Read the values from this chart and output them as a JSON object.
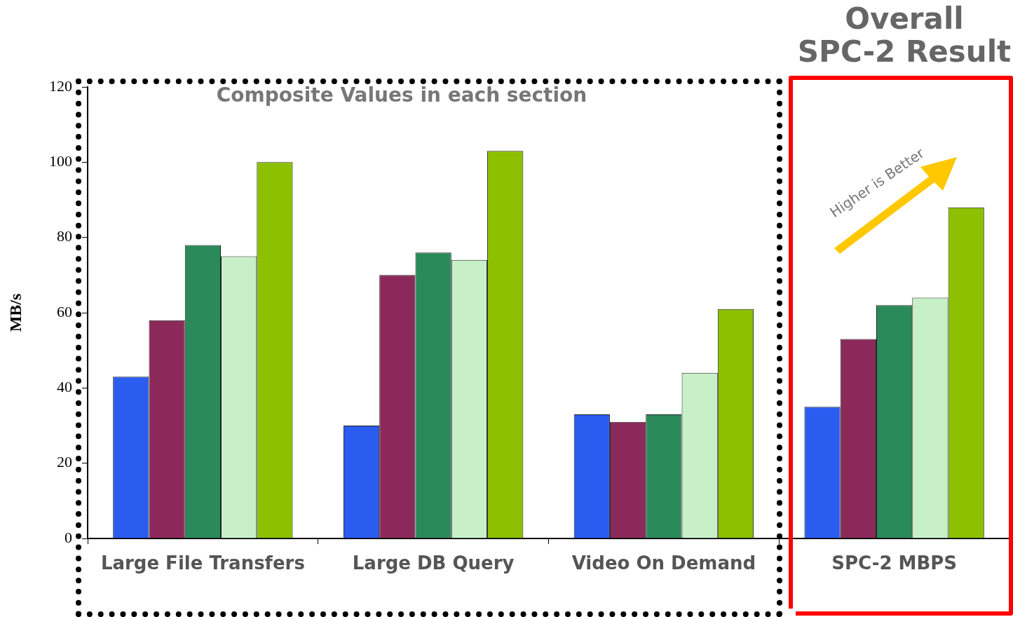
{
  "chart_data": {
    "type": "bar",
    "ylabel": "MB/s",
    "categories": [
      "Large File Transfers",
      "Large DB Query",
      "Video On Demand",
      "SPC-2 MBPS"
    ],
    "series": [
      {
        "color": "#2a5cf0",
        "values": [
          43,
          30,
          33,
          35
        ]
      },
      {
        "color": "#8b2a5a",
        "values": [
          58,
          70,
          31,
          53
        ]
      },
      {
        "color": "#2a8a5a",
        "values": [
          78,
          76,
          33,
          62
        ]
      },
      {
        "color": "#c8f0c8",
        "values": [
          75,
          74,
          44,
          64
        ]
      },
      {
        "color": "#8cc000",
        "values": [
          100,
          103,
          61,
          88
        ]
      }
    ],
    "ylim": [
      0,
      120
    ],
    "yticks": [
      0,
      20,
      40,
      60,
      80,
      100,
      120
    ],
    "grid": false,
    "legend": false,
    "annotations": [
      "Composite Values in each section",
      "Overall\nSPC-2 Result",
      "Higher is Better"
    ]
  }
}
